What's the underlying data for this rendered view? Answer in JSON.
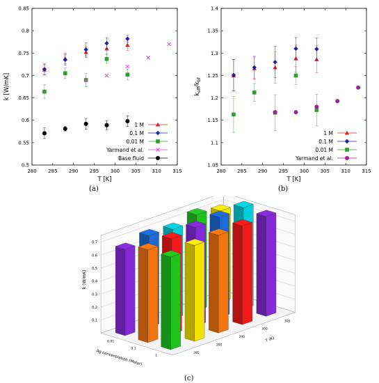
{
  "chart_data": [
    {
      "type": "scatter",
      "panel": "a",
      "caption": "(a)",
      "xlabel": "T [K]",
      "ylabel": "k [W/mK]",
      "xlim": [
        280,
        315
      ],
      "ylim": [
        0.5,
        0.85
      ],
      "xticks": [
        "280",
        "285",
        "290",
        "295",
        "300",
        "305",
        "310",
        "315"
      ],
      "yticks": [
        "0.5",
        "0.55",
        "0.6",
        "0.65",
        "0.7",
        "0.75",
        "0.8",
        "0.85"
      ],
      "legend_position": "bottom-right",
      "series": [
        {
          "name": "1 M",
          "color": "#d62728",
          "marker": "triangle",
          "x": [
            283,
            288,
            293,
            298,
            303
          ],
          "y": [
            0.713,
            0.738,
            0.752,
            0.76,
            0.768
          ],
          "err": [
            0.012,
            0.012,
            0.012,
            0.012,
            0.012
          ]
        },
        {
          "name": "0.1 M",
          "color": "#1f1fa8",
          "marker": "diamond",
          "x": [
            283,
            288,
            293,
            298,
            303
          ],
          "y": [
            0.714,
            0.735,
            0.758,
            0.772,
            0.782
          ],
          "err": [
            0.012,
            0.012,
            0.015,
            0.012,
            0.008
          ]
        },
        {
          "name": "0.01 M",
          "color": "#2ca02c",
          "marker": "square",
          "x": [
            283,
            288,
            293,
            298,
            303
          ],
          "y": [
            0.664,
            0.705,
            0.69,
            0.737,
            0.702
          ],
          "err": [
            0.015,
            0.012,
            0.015,
            0.01,
            0.012
          ]
        },
        {
          "name": "Yarmand et al.",
          "color": "#e040e0",
          "marker": "cross",
          "x": [
            293,
            298,
            303,
            308,
            313
          ],
          "y": [
            0.69,
            0.7,
            0.72,
            0.74,
            0.77
          ],
          "err": [
            0,
            0,
            0,
            0,
            0
          ]
        },
        {
          "name": "Base fluid",
          "color": "#000000",
          "marker": "circle",
          "x": [
            283,
            288,
            293,
            298,
            303
          ],
          "y": [
            0.571,
            0.581,
            0.592,
            0.589,
            0.598
          ],
          "err": [
            0.012,
            0.005,
            0.012,
            0.01,
            0.012
          ]
        }
      ]
    },
    {
      "type": "scatter",
      "panel": "b",
      "caption": "(b)",
      "xlabel": "T [K]",
      "ylabel_main": "k",
      "ylabel_sub": "eff",
      "ylabel_mid": "/k",
      "ylabel_sub2": "bf",
      "xlim": [
        280,
        315
      ],
      "ylim": [
        1.05,
        1.4
      ],
      "xticks": [
        "280",
        "285",
        "290",
        "295",
        "300",
        "305",
        "310",
        "315"
      ],
      "yticks": [
        "1.05",
        "1.1",
        "1.15",
        "1.2",
        "1.25",
        "1.3",
        "1.35",
        "1.4"
      ],
      "legend_position": "bottom-right",
      "series": [
        {
          "name": "1 M",
          "color": "#d62728",
          "marker": "triangle",
          "x": [
            283,
            288,
            293,
            298,
            303
          ],
          "y": [
            1.25,
            1.266,
            1.268,
            1.288,
            1.286
          ],
          "err": [
            0.035,
            0.025,
            0.035,
            0.03,
            0.03
          ]
        },
        {
          "name": "0.1 M",
          "color": "#1f1fa8",
          "marker": "diamond",
          "x": [
            283,
            288,
            293,
            298,
            303
          ],
          "y": [
            1.251,
            1.268,
            1.28,
            1.31,
            1.309
          ],
          "err": [
            0.035,
            0.025,
            0.035,
            0.025,
            0.025
          ]
        },
        {
          "name": "0.01 M",
          "color": "#2ca02c",
          "marker": "square",
          "x": [
            283,
            288,
            293,
            298,
            303
          ],
          "y": [
            1.163,
            1.212,
            1.167,
            1.25,
            1.173
          ],
          "err": [
            0.04,
            0.02,
            0.04,
            0.02,
            0.035
          ]
        },
        {
          "name": "Yarmand et al.",
          "color": "#a020a0",
          "marker": "circle",
          "x": [
            293,
            298,
            303,
            308,
            313
          ],
          "y": [
            1.168,
            1.168,
            1.18,
            1.193,
            1.223
          ],
          "err": [
            0,
            0,
            0,
            0,
            0
          ]
        }
      ]
    },
    {
      "type": "bar3d",
      "panel": "c",
      "caption": "(c)",
      "zlabel": "k (W/mK)",
      "xlabel": "Ag concentration (Molar)",
      "ylabel": "T (K)",
      "zticks": [
        "0.1",
        "0.2",
        "0.3",
        "0.4",
        "0.5",
        "0.6",
        "0.7"
      ],
      "xticks": [
        "0.01",
        "0.1",
        "1"
      ],
      "yticks": [
        "285",
        "290",
        "295",
        "300",
        "305"
      ],
      "concentrations": [
        "0.01",
        "0.1",
        "1"
      ],
      "temperatures": [
        "283",
        "288",
        "293",
        "298",
        "303"
      ],
      "bar_colors": [
        "#8a2be2",
        "#1e6fe0",
        "#00d8e6",
        "#22cc22",
        "#ffee00",
        "#ff7a10",
        "#ff1a1a"
      ],
      "values": [
        [
          0.664,
          0.705,
          0.69,
          0.737,
          0.702
        ],
        [
          0.714,
          0.735,
          0.758,
          0.772,
          0.782
        ],
        [
          0.713,
          0.738,
          0.752,
          0.76,
          0.768
        ]
      ]
    }
  ]
}
